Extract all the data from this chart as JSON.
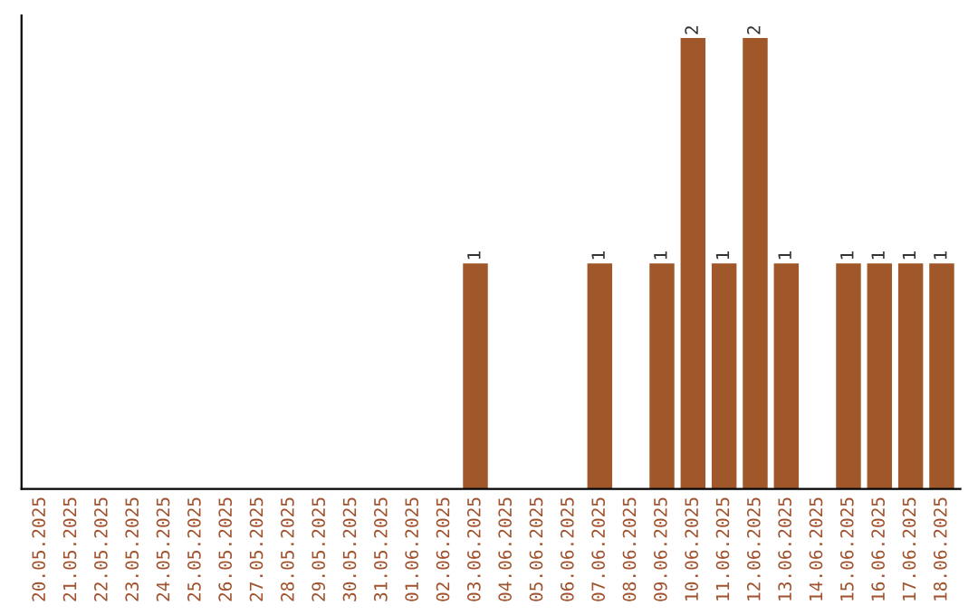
{
  "chart_data": {
    "type": "bar",
    "categories": [
      "20.05.2025",
      "21.05.2025",
      "22.05.2025",
      "23.05.2025",
      "24.05.2025",
      "25.05.2025",
      "26.05.2025",
      "27.05.2025",
      "28.05.2025",
      "29.05.2025",
      "30.05.2025",
      "31.05.2025",
      "01.06.2025",
      "02.06.2025",
      "03.06.2025",
      "04.06.2025",
      "05.06.2025",
      "06.06.2025",
      "07.06.2025",
      "08.06.2025",
      "09.06.2025",
      "10.06.2025",
      "11.06.2025",
      "12.06.2025",
      "13.06.2025",
      "14.06.2025",
      "15.06.2025",
      "16.06.2025",
      "17.06.2025",
      "18.06.2025"
    ],
    "values": [
      null,
      null,
      null,
      null,
      null,
      null,
      null,
      null,
      null,
      null,
      null,
      null,
      null,
      null,
      1,
      null,
      null,
      null,
      1,
      null,
      1,
      2,
      1,
      2,
      1,
      null,
      1,
      1,
      1,
      1
    ],
    "data_labels": true,
    "color": "#a0582a",
    "tick_labels": "x",
    "grid": false,
    "legend": false
  }
}
